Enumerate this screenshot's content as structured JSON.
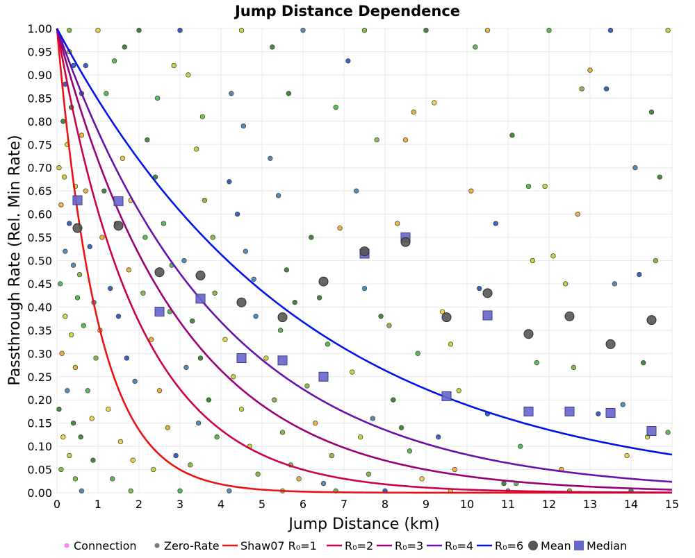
{
  "chart_data": {
    "type": "scatter",
    "title": "Jump Distance Dependence",
    "xlabel": "Jump Distance (km)",
    "ylabel": "Passthrough Rate (Rel. Min Rate)",
    "xlim": [
      0,
      15
    ],
    "ylim": [
      0,
      1
    ],
    "xticks": [
      "0",
      "1",
      "2",
      "3",
      "4",
      "5",
      "6",
      "7",
      "8",
      "9",
      "10",
      "11",
      "12",
      "13",
      "14",
      "15"
    ],
    "yticks": [
      "0.00",
      "0.05",
      "0.10",
      "0.15",
      "0.20",
      "0.25",
      "0.30",
      "0.35",
      "0.40",
      "0.45",
      "0.50",
      "0.55",
      "0.60",
      "0.65",
      "0.70",
      "0.75",
      "0.80",
      "0.85",
      "0.90",
      "0.95",
      "1.00"
    ],
    "grid": true,
    "legend_position": "bottom",
    "legend": [
      {
        "label": "Connection",
        "kind": "dot",
        "color": "#ff88ee"
      },
      {
        "label": "Zero-Rate",
        "kind": "dot",
        "color": "#777777"
      },
      {
        "label": "Shaw07 R₀=1",
        "kind": "line",
        "color": "#ee1111"
      },
      {
        "label": "R₀=2",
        "kind": "line",
        "color": "#cc0044"
      },
      {
        "label": "R₀=3",
        "kind": "line",
        "color": "#990077"
      },
      {
        "label": "R₀=4",
        "kind": "line",
        "color": "#6611aa"
      },
      {
        "label": "R₀=6",
        "kind": "line",
        "color": "#0011ee"
      },
      {
        "label": "Mean",
        "kind": "circle",
        "color": "#555555"
      },
      {
        "label": "Median",
        "kind": "square",
        "color": "#6666cc"
      }
    ],
    "curves": [
      {
        "name": "Shaw07 R₀=1",
        "formula": "y = exp(-x / R0)",
        "R0": 1,
        "color": "#ee1111"
      },
      {
        "name": "R₀=2",
        "formula": "y = exp(-x / R0)",
        "R0": 2,
        "color": "#cc0044"
      },
      {
        "name": "R₀=3",
        "formula": "y = exp(-x / R0)",
        "R0": 3,
        "color": "#990077"
      },
      {
        "name": "R₀=4",
        "formula": "y = exp(-x / R0)",
        "R0": 4,
        "color": "#6611aa"
      },
      {
        "name": "R₀=6",
        "formula": "y = exp(-x / R0)",
        "R0": 6,
        "color": "#0011ee"
      }
    ],
    "mean": {
      "x": [
        0.5,
        1.5,
        2.5,
        3.5,
        4.5,
        5.5,
        6.5,
        7.5,
        8.5,
        9.5,
        10.5,
        11.5,
        12.5,
        13.5,
        14.5
      ],
      "y": [
        0.57,
        0.575,
        0.475,
        0.468,
        0.41,
        0.378,
        0.455,
        0.52,
        0.54,
        0.378,
        0.43,
        0.342,
        0.38,
        0.32,
        0.372
      ]
    },
    "median": {
      "x": [
        0.5,
        1.5,
        2.5,
        3.5,
        4.5,
        5.5,
        6.5,
        7.5,
        8.5,
        9.5,
        10.5,
        11.5,
        12.5,
        13.5,
        14.5
      ],
      "y": [
        0.63,
        0.628,
        0.39,
        0.418,
        0.29,
        0.285,
        0.25,
        0.515,
        0.55,
        0.208,
        0.382,
        0.175,
        0.175,
        0.172,
        0.133
      ]
    },
    "connections": {
      "marker_colors": [
        "#7cb342",
        "#c6cc3a",
        "#e9cd3c",
        "#4caf50",
        "#2e7d32",
        "#3f7fbf",
        "#2451c7",
        "#e6a935"
      ],
      "points": [
        [
          0.1,
          0.97
        ],
        [
          0.3,
          0.95
        ],
        [
          0.2,
          0.88
        ],
        [
          0.4,
          0.92
        ],
        [
          0.15,
          0.8
        ],
        [
          0.35,
          0.83
        ],
        [
          0.25,
          0.75
        ],
        [
          0.05,
          0.7
        ],
        [
          0.45,
          0.66
        ],
        [
          0.1,
          0.62
        ],
        [
          0.3,
          0.58
        ],
        [
          0.2,
          0.52
        ],
        [
          0.4,
          0.49
        ],
        [
          0.08,
          0.45
        ],
        [
          0.5,
          0.42
        ],
        [
          0.2,
          0.38
        ],
        [
          0.35,
          0.34
        ],
        [
          0.12,
          0.3
        ],
        [
          0.45,
          0.27
        ],
        [
          0.25,
          0.22
        ],
        [
          0.05,
          0.18
        ],
        [
          0.4,
          0.15
        ],
        [
          0.15,
          0.12
        ],
        [
          0.3,
          0.08
        ],
        [
          0.1,
          0.05
        ],
        [
          0.45,
          0.03
        ],
        [
          0.6,
          0.77
        ],
        [
          0.7,
          0.65
        ],
        [
          0.8,
          0.53
        ],
        [
          0.9,
          0.41
        ],
        [
          0.65,
          0.36
        ],
        [
          0.75,
          0.22
        ],
        [
          0.85,
          0.16
        ],
        [
          0.55,
          0.47
        ],
        [
          0.95,
          0.29
        ],
        [
          0.6,
          0.86
        ],
        [
          0.7,
          0.92
        ],
        [
          0.58,
          0.12
        ],
        [
          0.88,
          0.07
        ],
        [
          0.18,
          0.68
        ],
        [
          1.2,
          0.86
        ],
        [
          1.4,
          0.93
        ],
        [
          1.6,
          0.72
        ],
        [
          1.8,
          0.63
        ],
        [
          1.1,
          0.55
        ],
        [
          1.3,
          0.44
        ],
        [
          1.5,
          0.38
        ],
        [
          1.7,
          0.29
        ],
        [
          1.9,
          0.24
        ],
        [
          1.25,
          0.18
        ],
        [
          1.55,
          0.11
        ],
        [
          1.85,
          0.07
        ],
        [
          1.05,
          0.35
        ],
        [
          1.45,
          0.58
        ],
        [
          1.75,
          0.48
        ],
        [
          1.15,
          0.65
        ],
        [
          1.65,
          0.96
        ],
        [
          1.35,
          0.03
        ],
        [
          2.2,
          0.76
        ],
        [
          2.4,
          0.68
        ],
        [
          2.6,
          0.58
        ],
        [
          2.8,
          0.49
        ],
        [
          2.1,
          0.43
        ],
        [
          2.3,
          0.33
        ],
        [
          2.5,
          0.22
        ],
        [
          2.7,
          0.14
        ],
        [
          2.9,
          0.08
        ],
        [
          2.15,
          0.55
        ],
        [
          2.45,
          0.85
        ],
        [
          2.75,
          0.39
        ],
        [
          2.35,
          0.05
        ],
        [
          2.85,
          0.92
        ],
        [
          3.2,
          0.9
        ],
        [
          3.4,
          0.74
        ],
        [
          3.6,
          0.63
        ],
        [
          3.8,
          0.55
        ],
        [
          3.1,
          0.5
        ],
        [
          3.3,
          0.37
        ],
        [
          3.5,
          0.29
        ],
        [
          3.7,
          0.2
        ],
        [
          3.9,
          0.12
        ],
        [
          3.25,
          0.06
        ],
        [
          3.55,
          0.81
        ],
        [
          3.85,
          0.43
        ],
        [
          3.15,
          0.27
        ],
        [
          3.45,
          0.15
        ],
        [
          4.2,
          0.67
        ],
        [
          4.4,
          0.6
        ],
        [
          4.6,
          0.52
        ],
        [
          4.8,
          0.46
        ],
        [
          4.1,
          0.33
        ],
        [
          4.3,
          0.25
        ],
        [
          4.5,
          0.18
        ],
        [
          4.7,
          0.1
        ],
        [
          4.9,
          0.04
        ],
        [
          4.25,
          0.86
        ],
        [
          4.55,
          0.79
        ],
        [
          4.85,
          0.38
        ],
        [
          5.2,
          0.72
        ],
        [
          5.4,
          0.64
        ],
        [
          5.6,
          0.48
        ],
        [
          5.8,
          0.41
        ],
        [
          5.1,
          0.29
        ],
        [
          5.3,
          0.2
        ],
        [
          5.5,
          0.13
        ],
        [
          5.7,
          0.06
        ],
        [
          5.9,
          0.03
        ],
        [
          5.25,
          0.96
        ],
        [
          5.65,
          0.86
        ],
        [
          5.45,
          0.35
        ],
        [
          6.2,
          0.55
        ],
        [
          6.4,
          0.42
        ],
        [
          6.6,
          0.32
        ],
        [
          6.8,
          0.83
        ],
        [
          6.1,
          0.23
        ],
        [
          6.3,
          0.15
        ],
        [
          6.7,
          0.08
        ],
        [
          6.9,
          0.57
        ],
        [
          6.5,
          0.02
        ],
        [
          7.1,
          0.93
        ],
        [
          7.3,
          0.65
        ],
        [
          7.5,
          0.44
        ],
        [
          7.7,
          0.16
        ],
        [
          7.9,
          0.38
        ],
        [
          7.2,
          0.26
        ],
        [
          7.4,
          0.12
        ],
        [
          7.6,
          0.04
        ],
        [
          7.8,
          0.76
        ],
        [
          8.1,
          0.36
        ],
        [
          8.3,
          0.58
        ],
        [
          8.5,
          0.76
        ],
        [
          8.7,
          0.82
        ],
        [
          8.2,
          0.2
        ],
        [
          8.4,
          0.14
        ],
        [
          8.6,
          0.09
        ],
        [
          8.8,
          0.3
        ],
        [
          8.9,
          0.03
        ],
        [
          9.2,
          0.84
        ],
        [
          9.4,
          0.39
        ],
        [
          9.6,
          0.32
        ],
        [
          9.8,
          0.22
        ],
        [
          9.3,
          0.12
        ],
        [
          9.7,
          0.05
        ],
        [
          10.1,
          0.65
        ],
        [
          10.3,
          0.44
        ],
        [
          10.5,
          0.17
        ],
        [
          10.7,
          0.58
        ],
        [
          10.2,
          0.96
        ],
        [
          10.9,
          0.02
        ],
        [
          11.1,
          0.77
        ],
        [
          11.3,
          0.1
        ],
        [
          11.5,
          0.66
        ],
        [
          11.7,
          0.28
        ],
        [
          11.6,
          0.5
        ],
        [
          11.9,
          0.66
        ],
        [
          12.1,
          0.51
        ],
        [
          12.4,
          0.45
        ],
        [
          12.6,
          0.27
        ],
        [
          12.8,
          0.87
        ],
        [
          12.7,
          0.6
        ],
        [
          13.0,
          0.91
        ],
        [
          13.2,
          0.17
        ],
        [
          13.4,
          0.87
        ],
        [
          13.6,
          0.45
        ],
        [
          13.8,
          0.19
        ],
        [
          14.1,
          0.7
        ],
        [
          14.3,
          0.28
        ],
        [
          14.5,
          0.82
        ],
        [
          14.7,
          0.68
        ],
        [
          14.9,
          0.13
        ],
        [
          14.4,
          0.12
        ],
        [
          14.6,
          0.5
        ],
        [
          14.2,
          0.47
        ],
        [
          12.3,
          0.05
        ],
        [
          11.2,
          0.02
        ],
        [
          13.9,
          0.08
        ],
        [
          0.3,
          0.996
        ],
        [
          1.0,
          0.996
        ],
        [
          2.0,
          0.996
        ],
        [
          3.0,
          0.996
        ],
        [
          4.5,
          0.996
        ],
        [
          6.0,
          0.996
        ],
        [
          7.5,
          0.996
        ],
        [
          9.0,
          0.996
        ],
        [
          10.5,
          0.996
        ],
        [
          12.0,
          0.996
        ],
        [
          13.5,
          0.996
        ],
        [
          14.9,
          0.996
        ],
        [
          0.6,
          0.004
        ],
        [
          1.8,
          0.004
        ],
        [
          3.0,
          0.004
        ],
        [
          4.2,
          0.004
        ],
        [
          5.5,
          0.004
        ],
        [
          6.8,
          0.004
        ],
        [
          8.0,
          0.004
        ],
        [
          9.6,
          0.004
        ],
        [
          11.0,
          0.004
        ],
        [
          12.5,
          0.004
        ],
        [
          14.0,
          0.004
        ]
      ]
    }
  }
}
